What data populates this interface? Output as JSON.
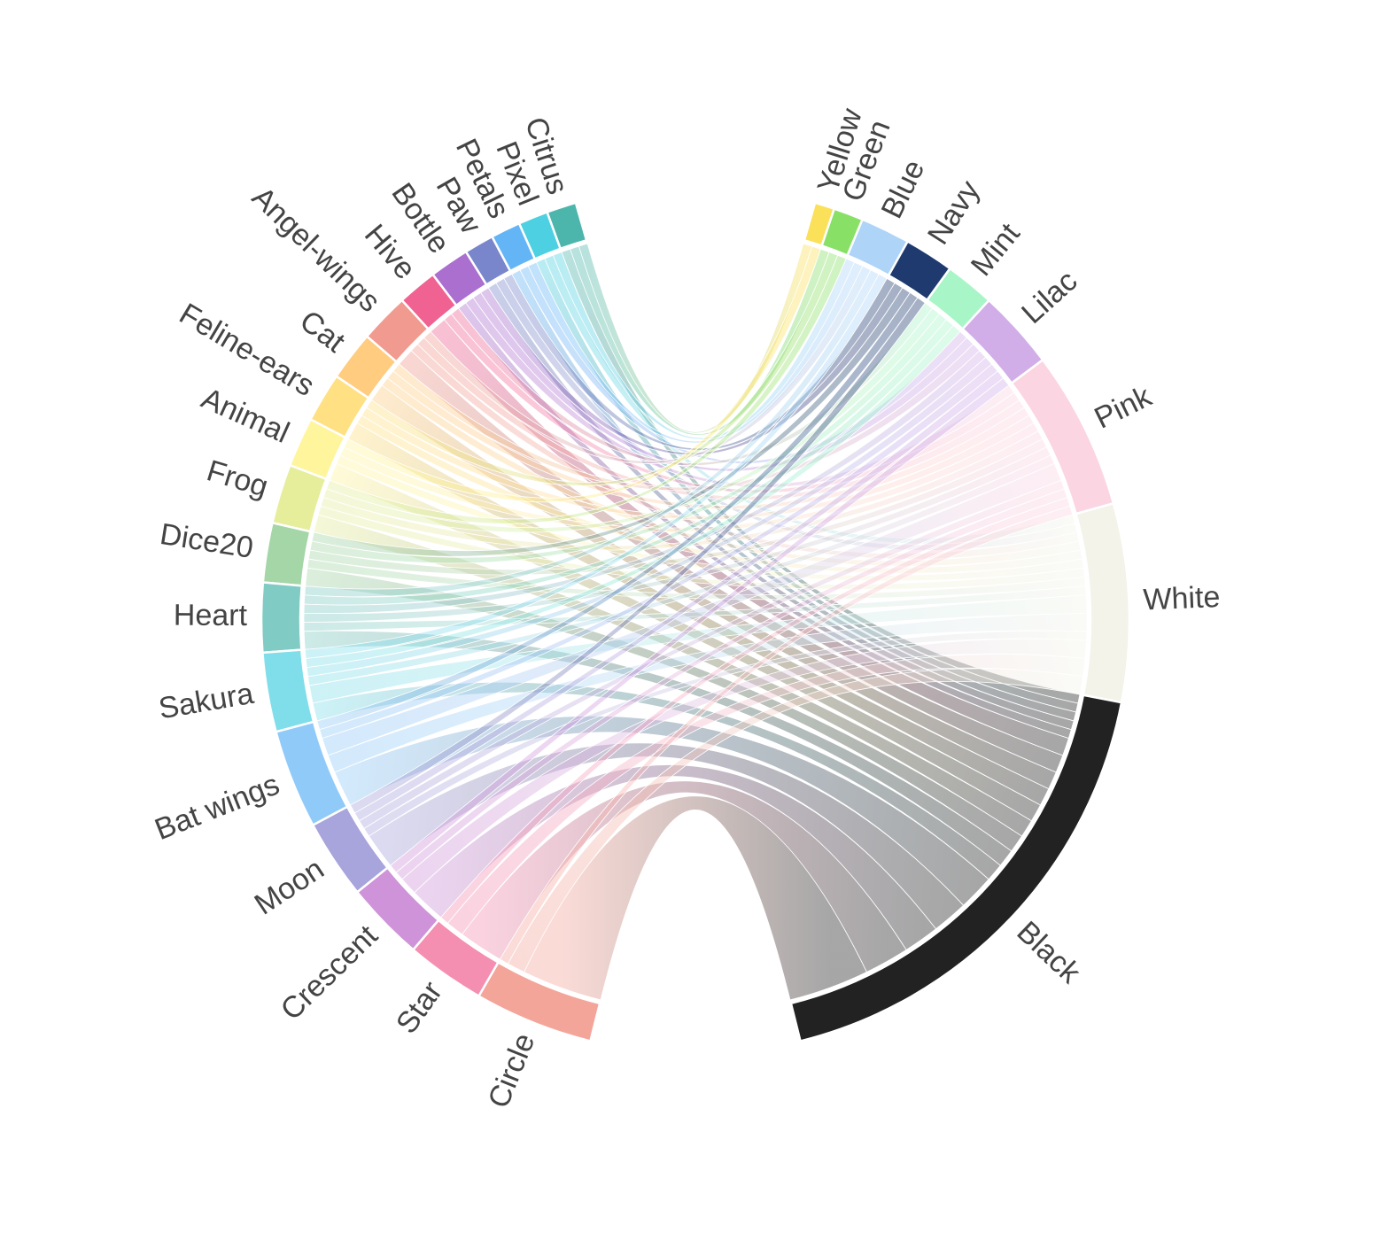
{
  "chart_data": {
    "type": "chord",
    "sources": [
      {
        "name": "Citrus",
        "color": "#4db6ac"
      },
      {
        "name": "Pixel",
        "color": "#4dd0e1"
      },
      {
        "name": "Petals",
        "color": "#64b5f6"
      },
      {
        "name": "Paw",
        "color": "#7986cb"
      },
      {
        "name": "Bottle",
        "color": "#ab6fcf"
      },
      {
        "name": "Hive",
        "color": "#f06292"
      },
      {
        "name": "Angel-wings",
        "color": "#f19a8f"
      },
      {
        "name": "Cat",
        "color": "#ffcc80"
      },
      {
        "name": "Feline-ears",
        "color": "#ffe082"
      },
      {
        "name": "Animal",
        "color": "#fff59d"
      },
      {
        "name": "Frog",
        "color": "#e6ee9c"
      },
      {
        "name": "Dice20",
        "color": "#a5d6a7"
      },
      {
        "name": "Heart",
        "color": "#80cbc4"
      },
      {
        "name": "Sakura",
        "color": "#80deea"
      },
      {
        "name": "Bat wings",
        "color": "#90caf9"
      },
      {
        "name": "Moon",
        "color": "#a8a4dc"
      },
      {
        "name": "Crescent",
        "color": "#ce93d8"
      },
      {
        "name": "Star",
        "color": "#f48fb1"
      },
      {
        "name": "Circle",
        "color": "#f4a59a"
      }
    ],
    "targets": [
      {
        "name": "Yellow",
        "color": "#fbe05a"
      },
      {
        "name": "Green",
        "color": "#88e066"
      },
      {
        "name": "Blue",
        "color": "#aed4f8"
      },
      {
        "name": "Navy",
        "color": "#1e3a6e"
      },
      {
        "name": "Mint",
        "color": "#a8f5c8"
      },
      {
        "name": "Lilac",
        "color": "#d1aee8"
      },
      {
        "name": "Pink",
        "color": "#fbd5e2"
      },
      {
        "name": "White",
        "color": "#f3f3ea"
      },
      {
        "name": "Black",
        "color": "#222222"
      }
    ],
    "flows": [
      [
        1,
        1,
        0,
        0,
        0,
        0,
        0,
        0,
        1
      ],
      [
        0,
        0,
        1,
        0,
        0,
        0,
        0,
        1,
        1
      ],
      [
        0,
        0,
        1,
        0,
        0,
        1,
        0,
        0,
        1
      ],
      [
        0,
        0,
        0,
        1,
        0,
        0,
        0,
        1,
        1
      ],
      [
        0,
        0,
        0,
        1,
        0,
        1,
        1,
        0,
        1
      ],
      [
        0,
        0,
        0,
        0,
        1,
        0,
        1,
        0,
        2
      ],
      [
        0,
        0,
        1,
        0,
        0,
        0,
        1,
        1,
        2
      ],
      [
        0,
        0,
        0,
        0,
        0,
        1,
        1,
        1,
        2
      ],
      [
        0,
        1,
        0,
        0,
        0,
        0,
        1,
        1,
        2
      ],
      [
        1,
        0,
        0,
        0,
        0,
        0,
        1,
        1,
        2
      ],
      [
        0,
        1,
        0,
        0,
        1,
        0,
        1,
        1,
        2
      ],
      [
        0,
        0,
        0,
        1,
        1,
        0,
        1,
        1,
        2
      ],
      [
        0,
        0,
        1,
        0,
        1,
        1,
        1,
        1,
        2
      ],
      [
        0,
        0,
        1,
        0,
        1,
        1,
        1,
        2,
        2
      ],
      [
        0,
        0,
        0,
        1,
        0,
        1,
        2,
        2,
        4
      ],
      [
        0,
        0,
        0,
        1,
        0,
        1,
        1,
        1,
        4
      ],
      [
        0,
        0,
        0,
        0,
        0,
        1,
        1,
        2,
        4
      ],
      [
        0,
        0,
        0,
        0,
        0,
        0,
        1,
        2,
        5
      ],
      [
        0,
        0,
        0,
        0,
        0,
        0,
        1,
        2,
        9
      ]
    ]
  }
}
